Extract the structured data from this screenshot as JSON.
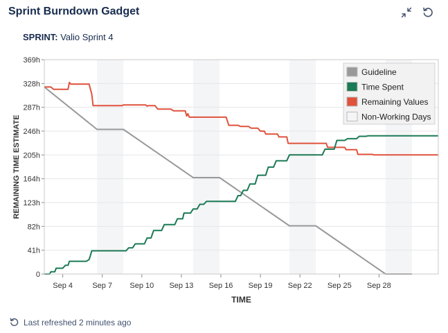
{
  "gadget": {
    "title": "Sprint Burndown Gadget",
    "sprint_label": "SPRINT:",
    "sprint_name": "Valio Sprint 4",
    "footer": "Last refreshed 2 minutes ago"
  },
  "colors": {
    "guideline": "#999999",
    "time_spent": "#1a7a54",
    "remaining": "#e0523c",
    "non_working": "#f4f5f7",
    "grid": "#e6e6e6"
  },
  "chart_data": {
    "type": "line",
    "title": "",
    "xlabel": "TIME",
    "ylabel": "REMAINING TIME ESTIMATE",
    "x_unit": "days since Sep 1",
    "ylim": [
      0,
      369
    ],
    "xlim": [
      1.6,
      31.5
    ],
    "y_ticks": [
      0,
      41,
      82,
      123,
      164,
      205,
      246,
      287,
      328,
      369
    ],
    "y_tick_labels": [
      "0",
      "41h",
      "82h",
      "123h",
      "164h",
      "205h",
      "246h",
      "287h",
      "328h",
      "369h"
    ],
    "x_ticks": [
      3,
      6,
      9,
      12,
      15,
      18,
      21,
      24,
      27
    ],
    "x_tick_labels": [
      "Sep 4",
      "Sep 7",
      "Sep 10",
      "Sep 13",
      "Sep 16",
      "Sep 19",
      "Sep 22",
      "Sep 25",
      "Sep 28"
    ],
    "legend": [
      "Guideline",
      "Time Spent",
      "Remaining Values",
      "Non-Working Days"
    ],
    "legend_position": "top-right",
    "non_working_days": [
      [
        5.6,
        7.6
      ],
      [
        12.9,
        14.9
      ],
      [
        20.2,
        22.2
      ],
      [
        27.5,
        29.5
      ]
    ],
    "series": [
      {
        "name": "Guideline",
        "points": [
          [
            1.6,
            322
          ],
          [
            5.6,
            249
          ],
          [
            7.6,
            249
          ],
          [
            12.9,
            166
          ],
          [
            14.9,
            166
          ],
          [
            20.2,
            83
          ],
          [
            22.2,
            83
          ],
          [
            27.5,
            0
          ],
          [
            29.5,
            0
          ]
        ]
      },
      {
        "name": "Time Spent",
        "points": [
          [
            1.6,
            0
          ],
          [
            2.0,
            0
          ],
          [
            2.1,
            4
          ],
          [
            2.4,
            4
          ],
          [
            2.5,
            10
          ],
          [
            3.0,
            10
          ],
          [
            3.2,
            15
          ],
          [
            3.4,
            15
          ],
          [
            3.5,
            22
          ],
          [
            4.8,
            22
          ],
          [
            5.0,
            25
          ],
          [
            5.1,
            32
          ],
          [
            5.2,
            40
          ],
          [
            7.8,
            40
          ],
          [
            8.0,
            45
          ],
          [
            8.3,
            45
          ],
          [
            8.5,
            52
          ],
          [
            9.2,
            52
          ],
          [
            9.4,
            62
          ],
          [
            9.7,
            62
          ],
          [
            9.9,
            75
          ],
          [
            10.5,
            75
          ],
          [
            10.7,
            85
          ],
          [
            11.5,
            85
          ],
          [
            11.7,
            95
          ],
          [
            12.1,
            95
          ],
          [
            12.2,
            105
          ],
          [
            12.7,
            105
          ],
          [
            12.9,
            112
          ],
          [
            13.2,
            112
          ],
          [
            13.4,
            120
          ],
          [
            13.7,
            120
          ],
          [
            13.9,
            125
          ],
          [
            16.1,
            125
          ],
          [
            16.3,
            135
          ],
          [
            16.5,
            135
          ],
          [
            16.7,
            144
          ],
          [
            17.0,
            144
          ],
          [
            17.2,
            155
          ],
          [
            17.6,
            155
          ],
          [
            17.8,
            170
          ],
          [
            18.4,
            170
          ],
          [
            18.6,
            184
          ],
          [
            19.0,
            184
          ],
          [
            19.2,
            195
          ],
          [
            20.0,
            195
          ],
          [
            20.2,
            205
          ],
          [
            22.7,
            205
          ],
          [
            22.9,
            215
          ],
          [
            23.6,
            215
          ],
          [
            23.8,
            230
          ],
          [
            24.4,
            230
          ],
          [
            24.6,
            233
          ],
          [
            25.3,
            233
          ],
          [
            25.5,
            237
          ],
          [
            26.0,
            237
          ],
          [
            26.2,
            238
          ],
          [
            31.5,
            238
          ]
        ]
      },
      {
        "name": "Remaining Values",
        "points": [
          [
            1.6,
            322
          ],
          [
            2.1,
            322
          ],
          [
            2.3,
            318
          ],
          [
            3.4,
            318
          ],
          [
            3.5,
            330
          ],
          [
            3.6,
            327
          ],
          [
            5.0,
            327
          ],
          [
            5.1,
            318
          ],
          [
            5.2,
            310
          ],
          [
            5.3,
            290
          ],
          [
            7.5,
            290
          ],
          [
            7.6,
            291
          ],
          [
            9.3,
            291
          ],
          [
            9.4,
            289
          ],
          [
            9.5,
            290
          ],
          [
            10.0,
            290
          ],
          [
            10.2,
            284
          ],
          [
            11.2,
            284
          ],
          [
            11.4,
            281
          ],
          [
            12.3,
            281
          ],
          [
            12.4,
            272
          ],
          [
            12.5,
            276
          ],
          [
            12.6,
            270
          ],
          [
            14.3,
            270
          ],
          [
            15.4,
            270
          ],
          [
            15.6,
            256
          ],
          [
            16.3,
            256
          ],
          [
            16.5,
            254
          ],
          [
            17.1,
            254
          ],
          [
            17.3,
            251
          ],
          [
            17.8,
            251
          ],
          [
            18.0,
            246
          ],
          [
            18.3,
            246
          ],
          [
            18.4,
            241
          ],
          [
            19.3,
            241
          ],
          [
            19.4,
            236
          ],
          [
            20.0,
            236
          ],
          [
            20.1,
            225
          ],
          [
            23.0,
            225
          ],
          [
            23.1,
            218
          ],
          [
            24.4,
            218
          ],
          [
            24.5,
            214
          ],
          [
            25.3,
            214
          ],
          [
            25.4,
            206
          ],
          [
            26.5,
            206
          ],
          [
            26.6,
            205
          ],
          [
            31.5,
            205
          ]
        ]
      }
    ]
  }
}
